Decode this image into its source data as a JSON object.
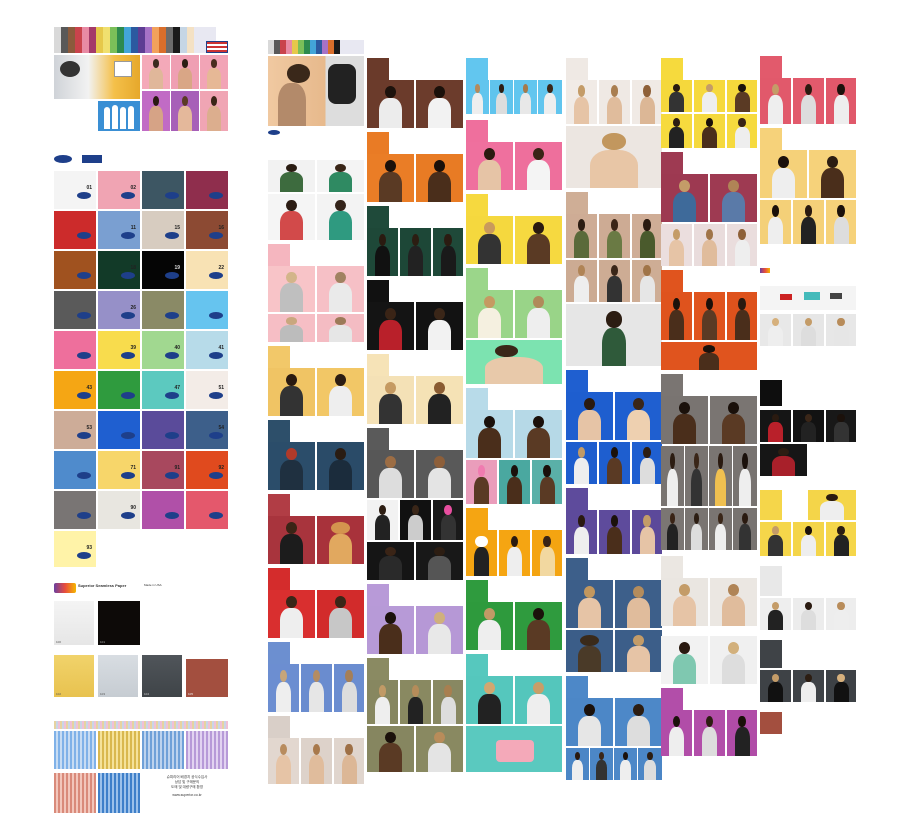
{
  "catalog": {
    "swatch_numbers": [
      "01",
      "02",
      "",
      "",
      "",
      "11",
      "15",
      "16",
      "",
      "18",
      "19",
      "22",
      "",
      "26",
      "",
      "",
      "",
      "39",
      "40",
      "41",
      "43",
      "",
      "47",
      "51",
      "53",
      "",
      "",
      "54",
      "",
      "71",
      "91",
      "92",
      "",
      "90",
      "",
      "",
      "93"
    ],
    "paper_title": "Superior Seamless Paper",
    "paper_subtitle": "Made in USA",
    "sample_labels": [
      "100",
      "101",
      "102",
      "103",
      "104",
      "105"
    ],
    "korean_text": {
      "line1": "슈피리어 배경지 공식수입사",
      "line2": "상담 및 구매문의",
      "line3": "도매 및 대량구매 환영",
      "line4": "www.superior.co.kr"
    }
  },
  "colors": {
    "brand_blue": "#1e3f8a",
    "paper_white": "#ffffff"
  }
}
